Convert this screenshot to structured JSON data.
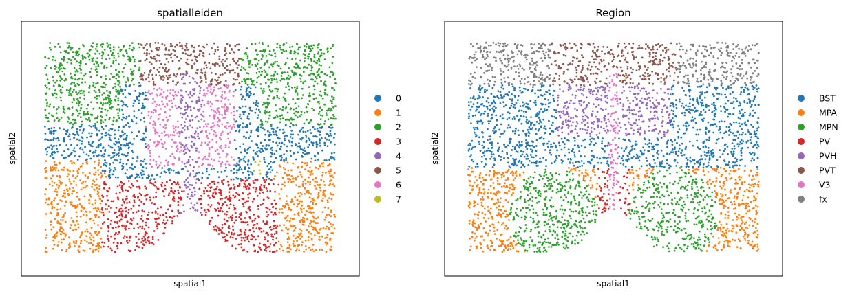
{
  "chart_data": [
    {
      "type": "scatter",
      "title": "spatialleiden",
      "xlabel": "spatial1",
      "ylabel": "spatial2",
      "xlim": [
        0,
        100
      ],
      "ylim": [
        0,
        100
      ],
      "legend_position": "right",
      "series": [
        {
          "name": "0",
          "color": "#1f77b4"
        },
        {
          "name": "1",
          "color": "#ff7f0e"
        },
        {
          "name": "2",
          "color": "#2ca02c"
        },
        {
          "name": "3",
          "color": "#d62728"
        },
        {
          "name": "4",
          "color": "#9467bd"
        },
        {
          "name": "5",
          "color": "#8c564b"
        },
        {
          "name": "6",
          "color": "#e377c2"
        },
        {
          "name": "7",
          "color": "#bcbd22"
        }
      ]
    },
    {
      "type": "scatter",
      "title": "Region",
      "xlabel": "spatial1",
      "ylabel": "spatial2",
      "xlim": [
        0,
        100
      ],
      "ylim": [
        0,
        100
      ],
      "legend_position": "right",
      "series": [
        {
          "name": "BST",
          "color": "#1f77b4"
        },
        {
          "name": "MPA",
          "color": "#ff7f0e"
        },
        {
          "name": "MPN",
          "color": "#2ca02c"
        },
        {
          "name": "PV",
          "color": "#d62728"
        },
        {
          "name": "PVH",
          "color": "#9467bd"
        },
        {
          "name": "PVT",
          "color": "#8c564b"
        },
        {
          "name": "V3",
          "color": "#e377c2"
        },
        {
          "name": "fx",
          "color": "#7f7f7f"
        }
      ]
    }
  ]
}
